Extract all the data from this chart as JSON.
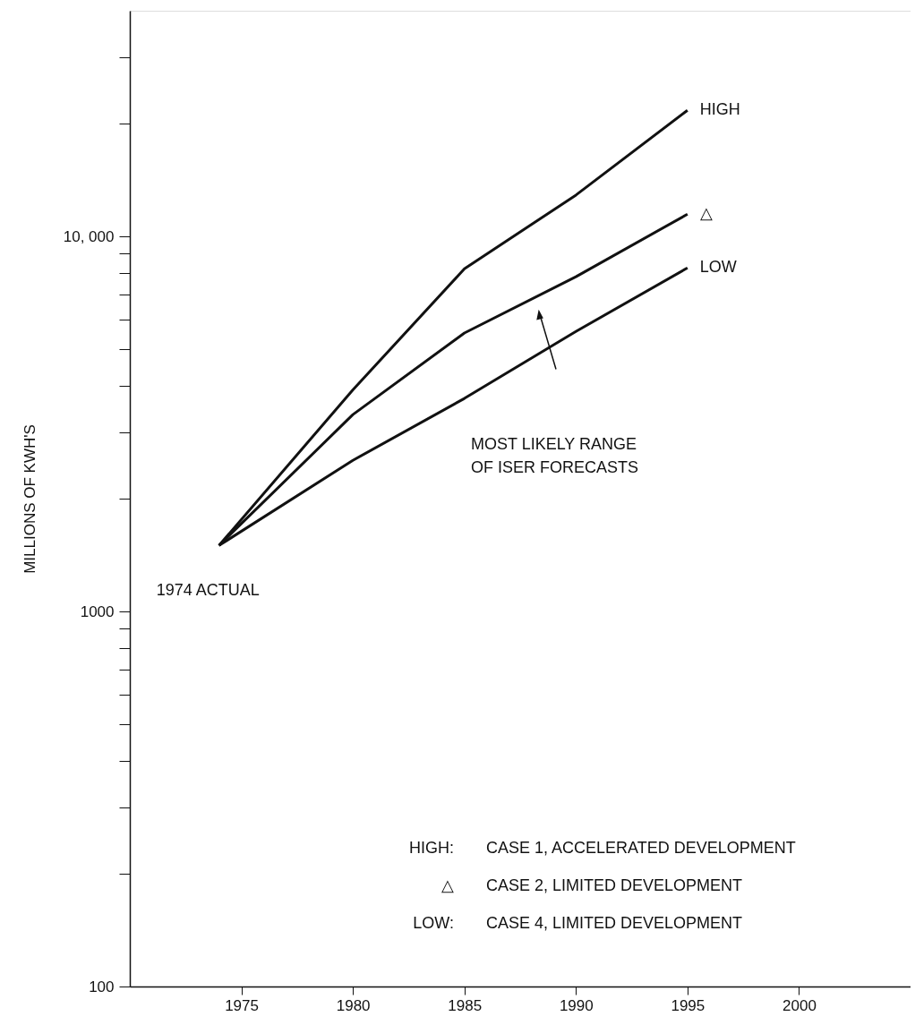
{
  "chart_data": {
    "type": "line",
    "ylabel": "MILLIONS OF KWH'S",
    "x": [
      1974,
      1980,
      1985,
      1990,
      1995
    ],
    "series": [
      {
        "name": "HIGH",
        "color": "#111111",
        "values": [
          1500,
          3900,
          8200,
          12900,
          21700
        ]
      },
      {
        "name": "△",
        "color": "#111111",
        "values": [
          1500,
          3350,
          5530,
          7810,
          11470
        ]
      },
      {
        "name": "LOW",
        "color": "#111111",
        "values": [
          1500,
          2530,
          3700,
          5580,
          8250
        ]
      }
    ],
    "log": "y",
    "xlim": [
      1970,
      2005
    ],
    "xticks": [
      1975,
      1980,
      1985,
      1990,
      1995,
      2000
    ],
    "ylim": [
      100,
      40000
    ],
    "yticks": [
      100,
      {
        "value": 200,
        "label": null
      },
      {
        "value": 300,
        "label": null
      },
      {
        "value": 400,
        "label": null
      },
      {
        "value": 500,
        "label": null
      },
      {
        "value": 600,
        "label": null
      },
      {
        "value": 700,
        "label": null
      },
      {
        "value": 800,
        "label": null
      },
      {
        "value": 900,
        "label": null
      },
      1000,
      {
        "value": 2000,
        "label": null
      },
      {
        "value": 3000,
        "label": null
      },
      {
        "value": 4000,
        "label": null
      },
      {
        "value": 5000,
        "label": null
      },
      {
        "value": 6000,
        "label": null
      },
      {
        "value": 7000,
        "label": null
      },
      {
        "value": 8000,
        "label": null
      },
      {
        "value": 9000,
        "label": null
      },
      {
        "value": 10000,
        "label": "10, 000"
      },
      {
        "value": 20000,
        "label": null
      },
      {
        "value": 30000,
        "label": null
      }
    ],
    "grid": false,
    "legend": "top right",
    "marker": "none",
    "line_style": "solid",
    "annotations": [
      {
        "text": "1974 ACTUAL",
        "x": 1974,
        "y": 1500
      },
      "MOST LIKELY RANGE\nOF ISER FORECASTS",
      "HIGH:   CASE 1, ACCELERATED DEVELOPMENT",
      "△       CASE 2, LIMITED DEVELOPMENT",
      "LOW:    CASE 4, LIMITED DEVELOPMENT"
    ]
  }
}
